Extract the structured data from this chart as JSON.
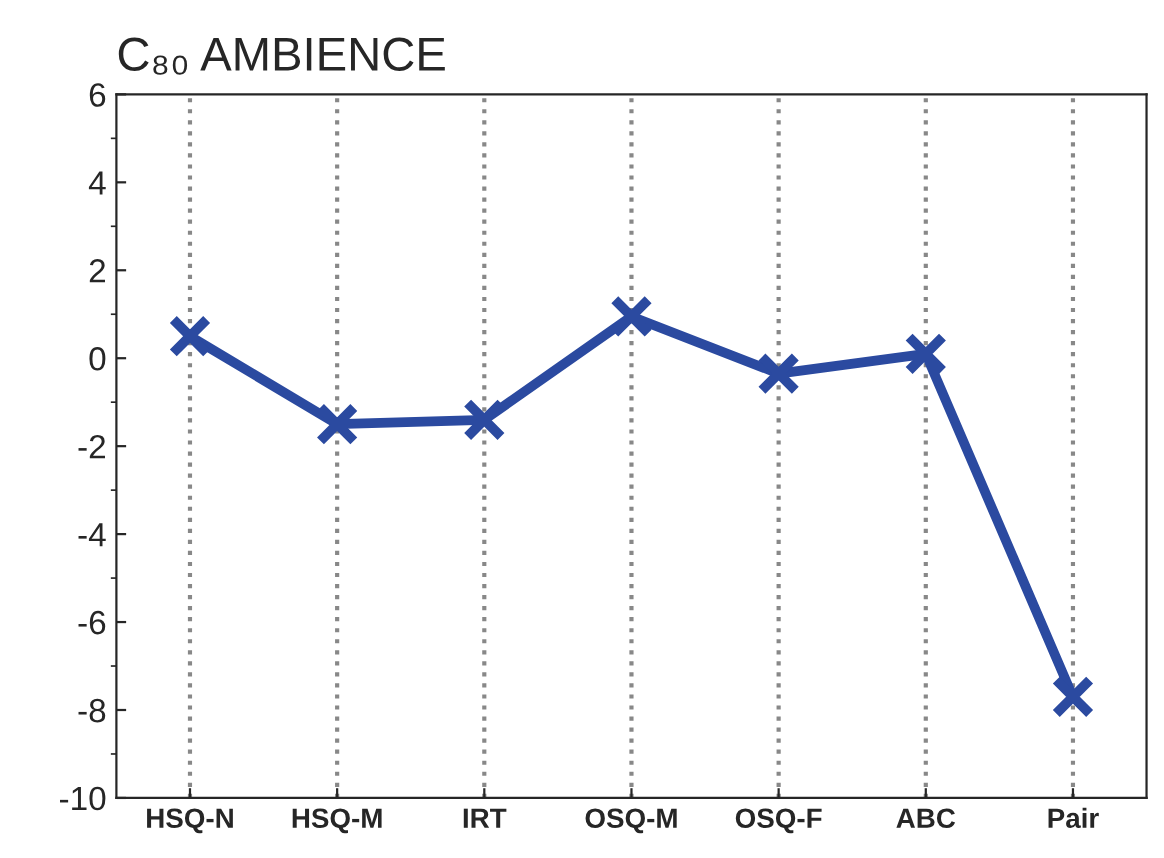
{
  "chart_data": {
    "type": "line",
    "title": "C₈₀ AMBIENCE",
    "categories": [
      "HSQ-N",
      "HSQ-M",
      "IRT",
      "OSQ-M",
      "OSQ-F",
      "ABC",
      "Pair"
    ],
    "series": [
      {
        "color": "#2b4aa0",
        "values": [
          0.5,
          -1.5,
          -1.4,
          0.95,
          -0.35,
          0.1,
          -7.7
        ]
      }
    ],
    "ylim": [
      -10,
      6
    ],
    "yticks": [
      -10,
      -8,
      -6,
      -4,
      -2,
      0,
      2,
      4,
      6
    ],
    "grid": "x",
    "marker": "cross",
    "line_style": "solid",
    "legend": false
  }
}
